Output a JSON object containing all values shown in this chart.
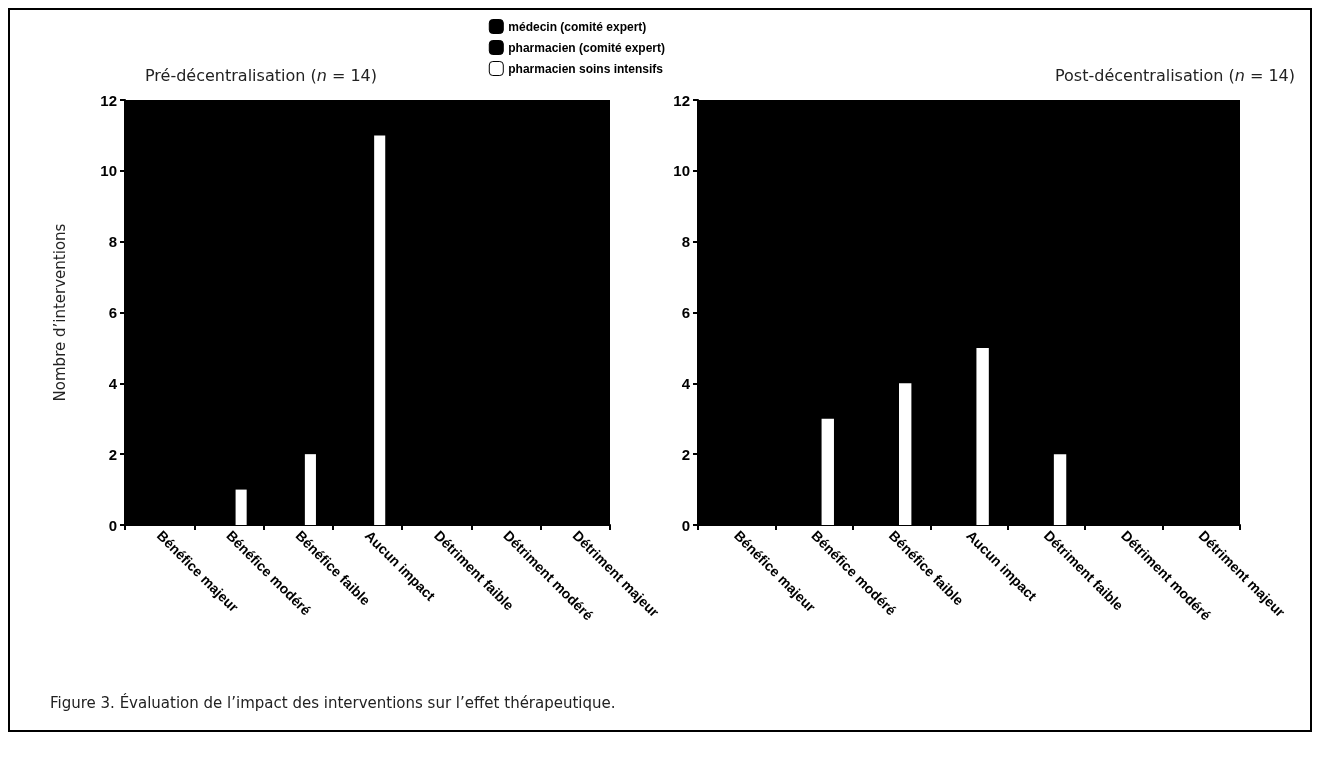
{
  "chart_data": [
    {
      "type": "bar",
      "title": "Pré-décentralisation (n = 14)",
      "ylabel": "Nombre d’interventions",
      "categories": [
        "Bénéfice majeur",
        "Bénéfice modéré",
        "Bénéfice faible",
        "Aucun impact",
        "Détriment faible",
        "Détriment modéré",
        "Détriment majeur"
      ],
      "series": [
        {
          "name": "médecin (comité expert)",
          "color": "#000000",
          "values": [
            null,
            null,
            null,
            null,
            null,
            null,
            null
          ]
        },
        {
          "name": "pharmacien (comité expert)",
          "color": "#000000",
          "values": [
            null,
            null,
            null,
            null,
            null,
            null,
            null
          ]
        },
        {
          "name": "pharmacien soins intensifs",
          "color": "#ffffff",
          "values": [
            0,
            1,
            2,
            11,
            0,
            0,
            0
          ]
        }
      ],
      "ylim": [
        0,
        12
      ],
      "yticks": [
        0,
        2,
        4,
        6,
        8,
        10,
        12
      ],
      "grid": false,
      "legend": "top right",
      "annotations": [
        "Figure 3. Évaluation de l’impact des interventions sur l’effet thérapeutique."
      ]
    },
    {
      "type": "bar",
      "title": "Post-décentralisation (n = 14)",
      "categories": [
        "Bénéfice majeur",
        "Bénéfice modéré",
        "Bénéfice faible",
        "Aucun impact",
        "Détriment faible",
        "Détriment modéré",
        "Détriment majeur"
      ],
      "series": [
        {
          "color": "#000000",
          "values": [
            null,
            null,
            null,
            null,
            null,
            null,
            null
          ]
        },
        {
          "color": "#000000",
          "values": [
            null,
            null,
            null,
            null,
            null,
            null,
            null
          ]
        },
        {
          "color": "#ffffff",
          "values": [
            0,
            3,
            4,
            5,
            2,
            0,
            0
          ]
        }
      ],
      "ylim": [
        0,
        12
      ],
      "yticks": [
        0,
        2,
        4,
        6,
        8,
        10,
        12
      ],
      "grid": false,
      "legend": false
    }
  ]
}
